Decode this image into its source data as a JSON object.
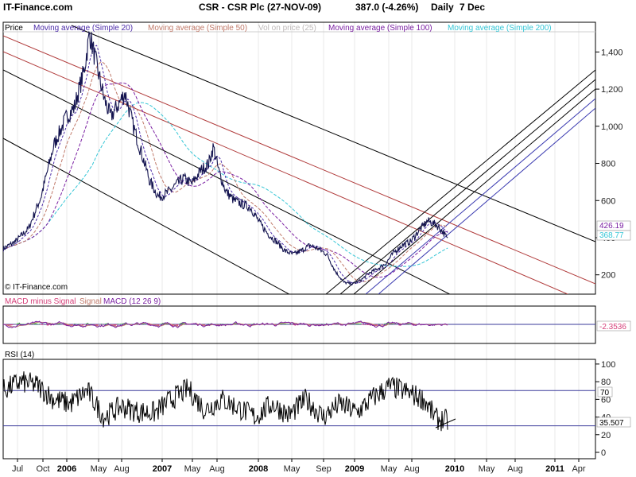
{
  "header": {
    "site": "IT-Finance.com",
    "title": "CSR - CSR Plc (27-NOV-09)",
    "price_change": "387.0 (-4.26%)",
    "period": "Daily",
    "date": "7 Dec"
  },
  "price_panel": {
    "legend": [
      {
        "label": "Price",
        "color": "#000000"
      },
      {
        "label": "Moving average (Simple 20)",
        "color": "#4b2aa8"
      },
      {
        "label": "Moving average (Simple 50)",
        "color": "#c07a6a"
      },
      {
        "label": "Vol on price (25)",
        "color": "#bdb8b8"
      },
      {
        "label": "Moving average (Simple 100)",
        "color": "#7a1fa2"
      },
      {
        "label": "Moving average (Simple 200)",
        "color": "#35c6d6"
      }
    ],
    "watermark": "© IT-Finance.com",
    "yticks": [
      "1,400",
      "1,200",
      "1,000",
      "800",
      "600",
      "400",
      "200"
    ],
    "right_tags": [
      {
        "text": "426.19",
        "color": "#7a1fa2"
      },
      {
        "text": "368.77",
        "color": "#35c6d6"
      }
    ]
  },
  "macd_panel": {
    "legend": [
      {
        "label": "MACD minus Signal",
        "color": "#d6407a"
      },
      {
        "label": "Signal",
        "color": "#c07a6a"
      },
      {
        "label": "MACD (12 26 9)",
        "color": "#7a1fa2"
      }
    ],
    "value_tag": "-2.3536"
  },
  "rsi_panel": {
    "title": "RSI (14)",
    "yticks": [
      "100",
      "80",
      "60",
      "40",
      "20",
      "0"
    ],
    "level_tag": "70",
    "value_tag": "35.507"
  },
  "xaxis": {
    "labels": [
      {
        "text": "Jul",
        "bold": false
      },
      {
        "text": "Oct",
        "bold": false
      },
      {
        "text": "2006",
        "bold": true
      },
      {
        "text": "May",
        "bold": false
      },
      {
        "text": "Aug",
        "bold": false
      },
      {
        "text": "2007",
        "bold": true
      },
      {
        "text": "May",
        "bold": false
      },
      {
        "text": "Aug",
        "bold": false
      },
      {
        "text": "2008",
        "bold": true
      },
      {
        "text": "May",
        "bold": false
      },
      {
        "text": "Sep",
        "bold": false
      },
      {
        "text": "2009",
        "bold": true
      },
      {
        "text": "May",
        "bold": false
      },
      {
        "text": "Aug",
        "bold": false
      },
      {
        "text": "2010",
        "bold": true
      },
      {
        "text": "May",
        "bold": false
      },
      {
        "text": "Aug",
        "bold": false
      },
      {
        "text": "2011",
        "bold": true
      },
      {
        "text": "Apr",
        "bold": false
      }
    ]
  },
  "chart_data": {
    "type": "line",
    "title": "CSR - CSR Plc (27-NOV-09)",
    "x_range": [
      "2005-07-01",
      "2011-05-15"
    ],
    "y_range": [
      100,
      1560
    ],
    "price_series": {
      "name": "Price",
      "x": [
        "2005-07-01",
        "2005-08-15",
        "2005-10-01",
        "2005-11-15",
        "2006-01-01",
        "2006-02-15",
        "2006-03-15",
        "2006-04-20",
        "2006-05-10",
        "2006-06-01",
        "2006-07-01",
        "2006-07-25",
        "2006-08-15",
        "2006-09-15",
        "2006-10-15",
        "2006-11-15",
        "2006-12-15",
        "2007-01-15",
        "2007-02-15",
        "2007-03-15",
        "2007-04-15",
        "2007-05-15",
        "2007-06-15",
        "2007-07-15",
        "2007-08-01",
        "2007-08-20",
        "2007-09-15",
        "2007-10-15",
        "2007-11-15",
        "2007-12-15",
        "2008-01-15",
        "2008-02-15",
        "2008-03-15",
        "2008-04-15",
        "2008-05-15",
        "2008-06-15",
        "2008-07-15",
        "2008-08-15",
        "2008-09-15",
        "2008-10-15",
        "2008-11-15",
        "2008-12-15",
        "2009-01-15",
        "2009-02-15",
        "2009-03-15",
        "2009-04-15",
        "2009-05-15",
        "2009-06-15",
        "2009-07-15",
        "2009-08-15",
        "2009-09-15",
        "2009-10-15",
        "2009-11-10",
        "2009-11-27"
      ],
      "values": [
        340,
        380,
        450,
        620,
        900,
        1050,
        1100,
        1300,
        1500,
        1350,
        1150,
        1050,
        1100,
        1180,
        1000,
        850,
        700,
        620,
        640,
        680,
        720,
        690,
        760,
        800,
        890,
        760,
        650,
        600,
        580,
        560,
        480,
        420,
        380,
        330,
        310,
        330,
        360,
        340,
        310,
        220,
        160,
        150,
        170,
        210,
        230,
        260,
        320,
        360,
        380,
        440,
        490,
        470,
        430,
        387
      ]
    },
    "macd": {
      "latest": -2.3536,
      "range": [
        -100,
        100
      ]
    },
    "rsi": {
      "period": 14,
      "range": [
        0,
        100
      ],
      "latest": 35.507,
      "levels": [
        30,
        70
      ],
      "x": [
        "2005-07-01",
        "2005-09-01",
        "2005-11-01",
        "2006-01-01",
        "2006-03-01",
        "2006-05-01",
        "2006-07-01",
        "2006-09-01",
        "2006-11-01",
        "2007-01-01",
        "2007-03-01",
        "2007-05-01",
        "2007-07-01",
        "2007-09-01",
        "2007-11-01",
        "2008-01-01",
        "2008-03-01",
        "2008-05-01",
        "2008-07-01",
        "2008-09-01",
        "2008-11-01",
        "2009-01-01",
        "2009-03-01",
        "2009-05-01",
        "2009-07-01",
        "2009-09-01",
        "2009-10-15",
        "2009-11-27"
      ],
      "values": [
        70,
        80,
        76,
        60,
        55,
        70,
        40,
        52,
        46,
        45,
        60,
        72,
        48,
        60,
        50,
        40,
        55,
        42,
        60,
        40,
        55,
        45,
        62,
        75,
        68,
        60,
        38,
        35.5
      ]
    }
  }
}
